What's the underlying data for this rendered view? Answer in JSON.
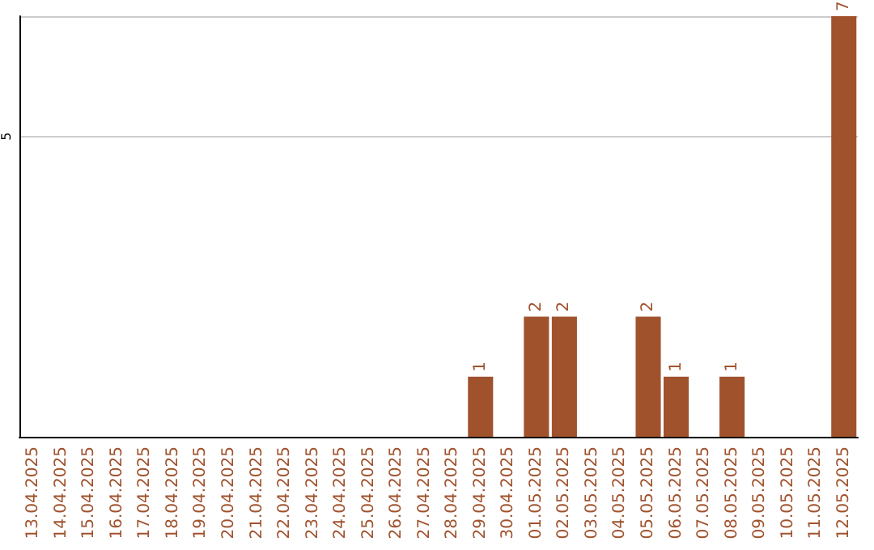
{
  "chart_data": {
    "type": "bar",
    "categories": [
      "13.04.2025",
      "14.04.2025",
      "15.04.2025",
      "16.04.2025",
      "17.04.2025",
      "18.04.2025",
      "19.04.2025",
      "20.04.2025",
      "21.04.2025",
      "22.04.2025",
      "23.04.2025",
      "24.04.2025",
      "25.04.2025",
      "26.04.2025",
      "27.04.2025",
      "28.04.2025",
      "29.04.2025",
      "30.04.2025",
      "01.05.2025",
      "02.05.2025",
      "03.05.2025",
      "04.05.2025",
      "05.05.2025",
      "06.05.2025",
      "07.05.2025",
      "08.05.2025",
      "09.05.2025",
      "10.05.2025",
      "11.05.2025",
      "12.05.2025"
    ],
    "values": [
      null,
      null,
      null,
      null,
      null,
      null,
      null,
      null,
      null,
      null,
      null,
      null,
      null,
      null,
      null,
      null,
      1,
      null,
      2,
      2,
      null,
      null,
      2,
      1,
      null,
      1,
      null,
      null,
      null,
      7
    ],
    "color": "#a0522d",
    "ylim": [
      0,
      7
    ],
    "yticks": [
      5
    ],
    "grid": "y",
    "data_labels": true
  }
}
